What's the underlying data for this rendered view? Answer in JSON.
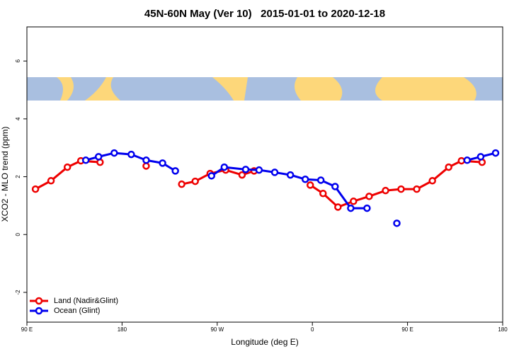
{
  "chart_data": {
    "type": "line",
    "title": "45N-60N May (Ver 10)   2015-01-01 to 2020-12-18",
    "xlabel": "Longitude (deg E)",
    "ylabel": "XCO2 - MLO trend (ppm)",
    "xlim": [
      90,
      540
    ],
    "xticks": [
      {
        "value": 90,
        "label": "90 E"
      },
      180,
      {
        "value": 270,
        "label": "90 W"
      },
      {
        "value": 360,
        "label": "0"
      },
      {
        "value": 450,
        "label": "90 E"
      },
      {
        "value": 540,
        "label": "180"
      }
    ],
    "ylim": [
      -3.03,
      7.18
    ],
    "yticks": [
      -2,
      0,
      2,
      4,
      6
    ],
    "legend": "bottomleft",
    "series": [
      {
        "name": "Land (Nadir&Glint)",
        "color": "#ee0000",
        "x": [
          98.1,
          112.8,
          128.3,
          141.0,
          159.2,
          null,
          202.8,
          null,
          236.4,
          249.2,
          263.3,
          278.0,
          293.5,
          304.9,
          null,
          358.0,
          370.1,
          384.2,
          398.9,
          413.7,
          429.2,
          443.9,
          458.7,
          473.5,
          488.9,
          501.0,
          520.5
        ],
        "values": [
          1.57,
          1.86,
          2.33,
          2.55,
          2.5,
          null,
          2.37,
          null,
          1.74,
          1.84,
          2.11,
          2.23,
          2.06,
          2.2,
          null,
          1.71,
          1.42,
          0.95,
          1.15,
          1.32,
          1.52,
          1.57,
          1.57,
          1.86,
          2.33,
          2.55,
          2.5
        ]
      },
      {
        "name": "Ocean (Glint)",
        "color": "#0000ee",
        "x": [
          145.7,
          157.8,
          172.6,
          188.7,
          202.8,
          218.3,
          230.4,
          null,
          264.6,
          276.7,
          296.9,
          309.6,
          324.4,
          339.2,
          353.3,
          368.0,
          381.5,
          396.3,
          411.7,
          null,
          439.9,
          null,
          506.4,
          519.2,
          533.3
        ],
        "values": [
          2.57,
          2.69,
          2.82,
          2.77,
          2.57,
          2.47,
          2.2,
          null,
          2.03,
          2.33,
          2.25,
          2.23,
          2.15,
          2.06,
          1.91,
          1.88,
          1.66,
          0.91,
          0.91,
          null,
          0.39,
          null,
          2.57,
          2.69,
          2.82
        ]
      }
    ]
  }
}
